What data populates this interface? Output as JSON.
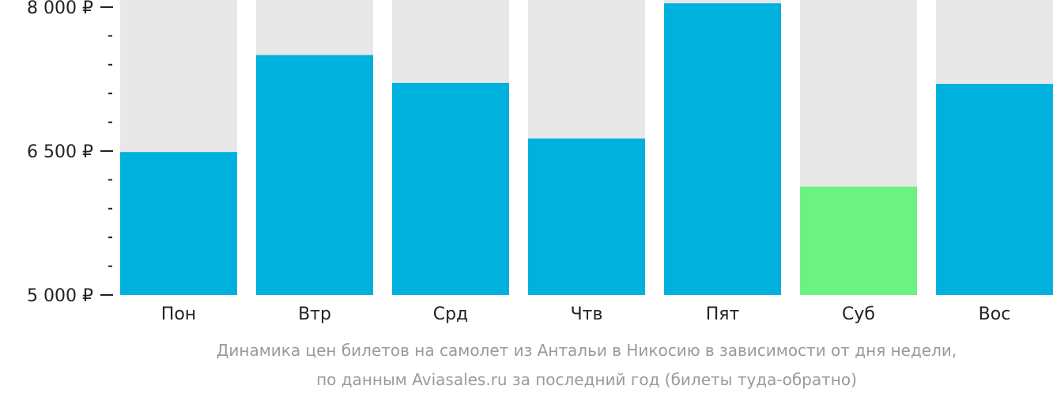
{
  "chart_data": {
    "type": "bar",
    "categories": [
      "Пон",
      "Втр",
      "Срд",
      "Чтв",
      "Пят",
      "Суб",
      "Вос"
    ],
    "values": [
      6490,
      7500,
      7210,
      6630,
      8040,
      6130,
      7200
    ],
    "ylim": [
      5000,
      8000
    ],
    "y_ticks": [
      {
        "value": 5000,
        "label": "5 000 ₽"
      },
      {
        "value": 6500,
        "label": "6 500 ₽"
      },
      {
        "value": 8000,
        "label": "8 000 ₽"
      }
    ],
    "y_minor_step": 300,
    "highlight_index": 5,
    "colors": {
      "bar": "#00b0dd",
      "highlight": "#6cf283",
      "track": "#e8e8e8",
      "axis": "#222222",
      "caption": "#9a9a9a"
    },
    "caption": [
      "Динамика цен билетов на самолет из Антальи в Никосию в зависимости от дня недели,",
      "по данным Aviasales.ru за последний год (билеты туда-обратно)"
    ]
  }
}
